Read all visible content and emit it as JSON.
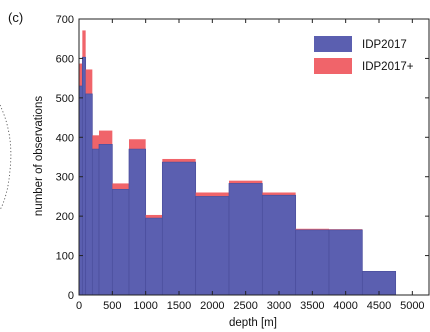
{
  "panel_label": "(c)",
  "colors": {
    "base": "#5b5fb0",
    "plus": "#f0646a",
    "edge": "#4a4e9c",
    "axis": "#222222"
  },
  "chart_data": {
    "type": "bar",
    "stacked": true,
    "histogram": true,
    "title": "",
    "xlabel": "depth [m]",
    "ylabel": "number of observations",
    "xlim": [
      0,
      5250
    ],
    "ylim": [
      0,
      700
    ],
    "xticks": [
      0,
      500,
      1000,
      1500,
      2000,
      2500,
      3000,
      3500,
      4000,
      4500,
      5000
    ],
    "yticks": [
      0,
      100,
      200,
      300,
      400,
      500,
      600,
      700
    ],
    "legend_position": "top-right",
    "bins": [
      {
        "x0": 0,
        "x1": 50,
        "IDP2017": 530,
        "IDP2017+": 57
      },
      {
        "x0": 50,
        "x1": 100,
        "IDP2017": 603,
        "IDP2017+": 68
      },
      {
        "x0": 100,
        "x1": 200,
        "IDP2017": 510,
        "IDP2017+": 62
      },
      {
        "x0": 200,
        "x1": 300,
        "IDP2017": 370,
        "IDP2017+": 35
      },
      {
        "x0": 300,
        "x1": 500,
        "IDP2017": 382,
        "IDP2017+": 35
      },
      {
        "x0": 500,
        "x1": 750,
        "IDP2017": 268,
        "IDP2017+": 15
      },
      {
        "x0": 750,
        "x1": 1000,
        "IDP2017": 370,
        "IDP2017+": 25
      },
      {
        "x0": 1000,
        "x1": 1250,
        "IDP2017": 195,
        "IDP2017+": 8
      },
      {
        "x0": 1250,
        "x1": 1750,
        "IDP2017": 337,
        "IDP2017+": 8
      },
      {
        "x0": 1750,
        "x1": 2250,
        "IDP2017": 250,
        "IDP2017+": 10
      },
      {
        "x0": 2250,
        "x1": 2750,
        "IDP2017": 283,
        "IDP2017+": 7
      },
      {
        "x0": 2750,
        "x1": 3250,
        "IDP2017": 253,
        "IDP2017+": 7
      },
      {
        "x0": 3250,
        "x1": 3750,
        "IDP2017": 165,
        "IDP2017+": 3
      },
      {
        "x0": 3750,
        "x1": 4250,
        "IDP2017": 165,
        "IDP2017+": 2
      },
      {
        "x0": 4250,
        "x1": 4750,
        "IDP2017": 60,
        "IDP2017+": 0
      }
    ],
    "series": [
      {
        "name": "IDP2017",
        "color": "#5b5fb0"
      },
      {
        "name": "IDP2017+",
        "color": "#f0646a"
      }
    ]
  }
}
